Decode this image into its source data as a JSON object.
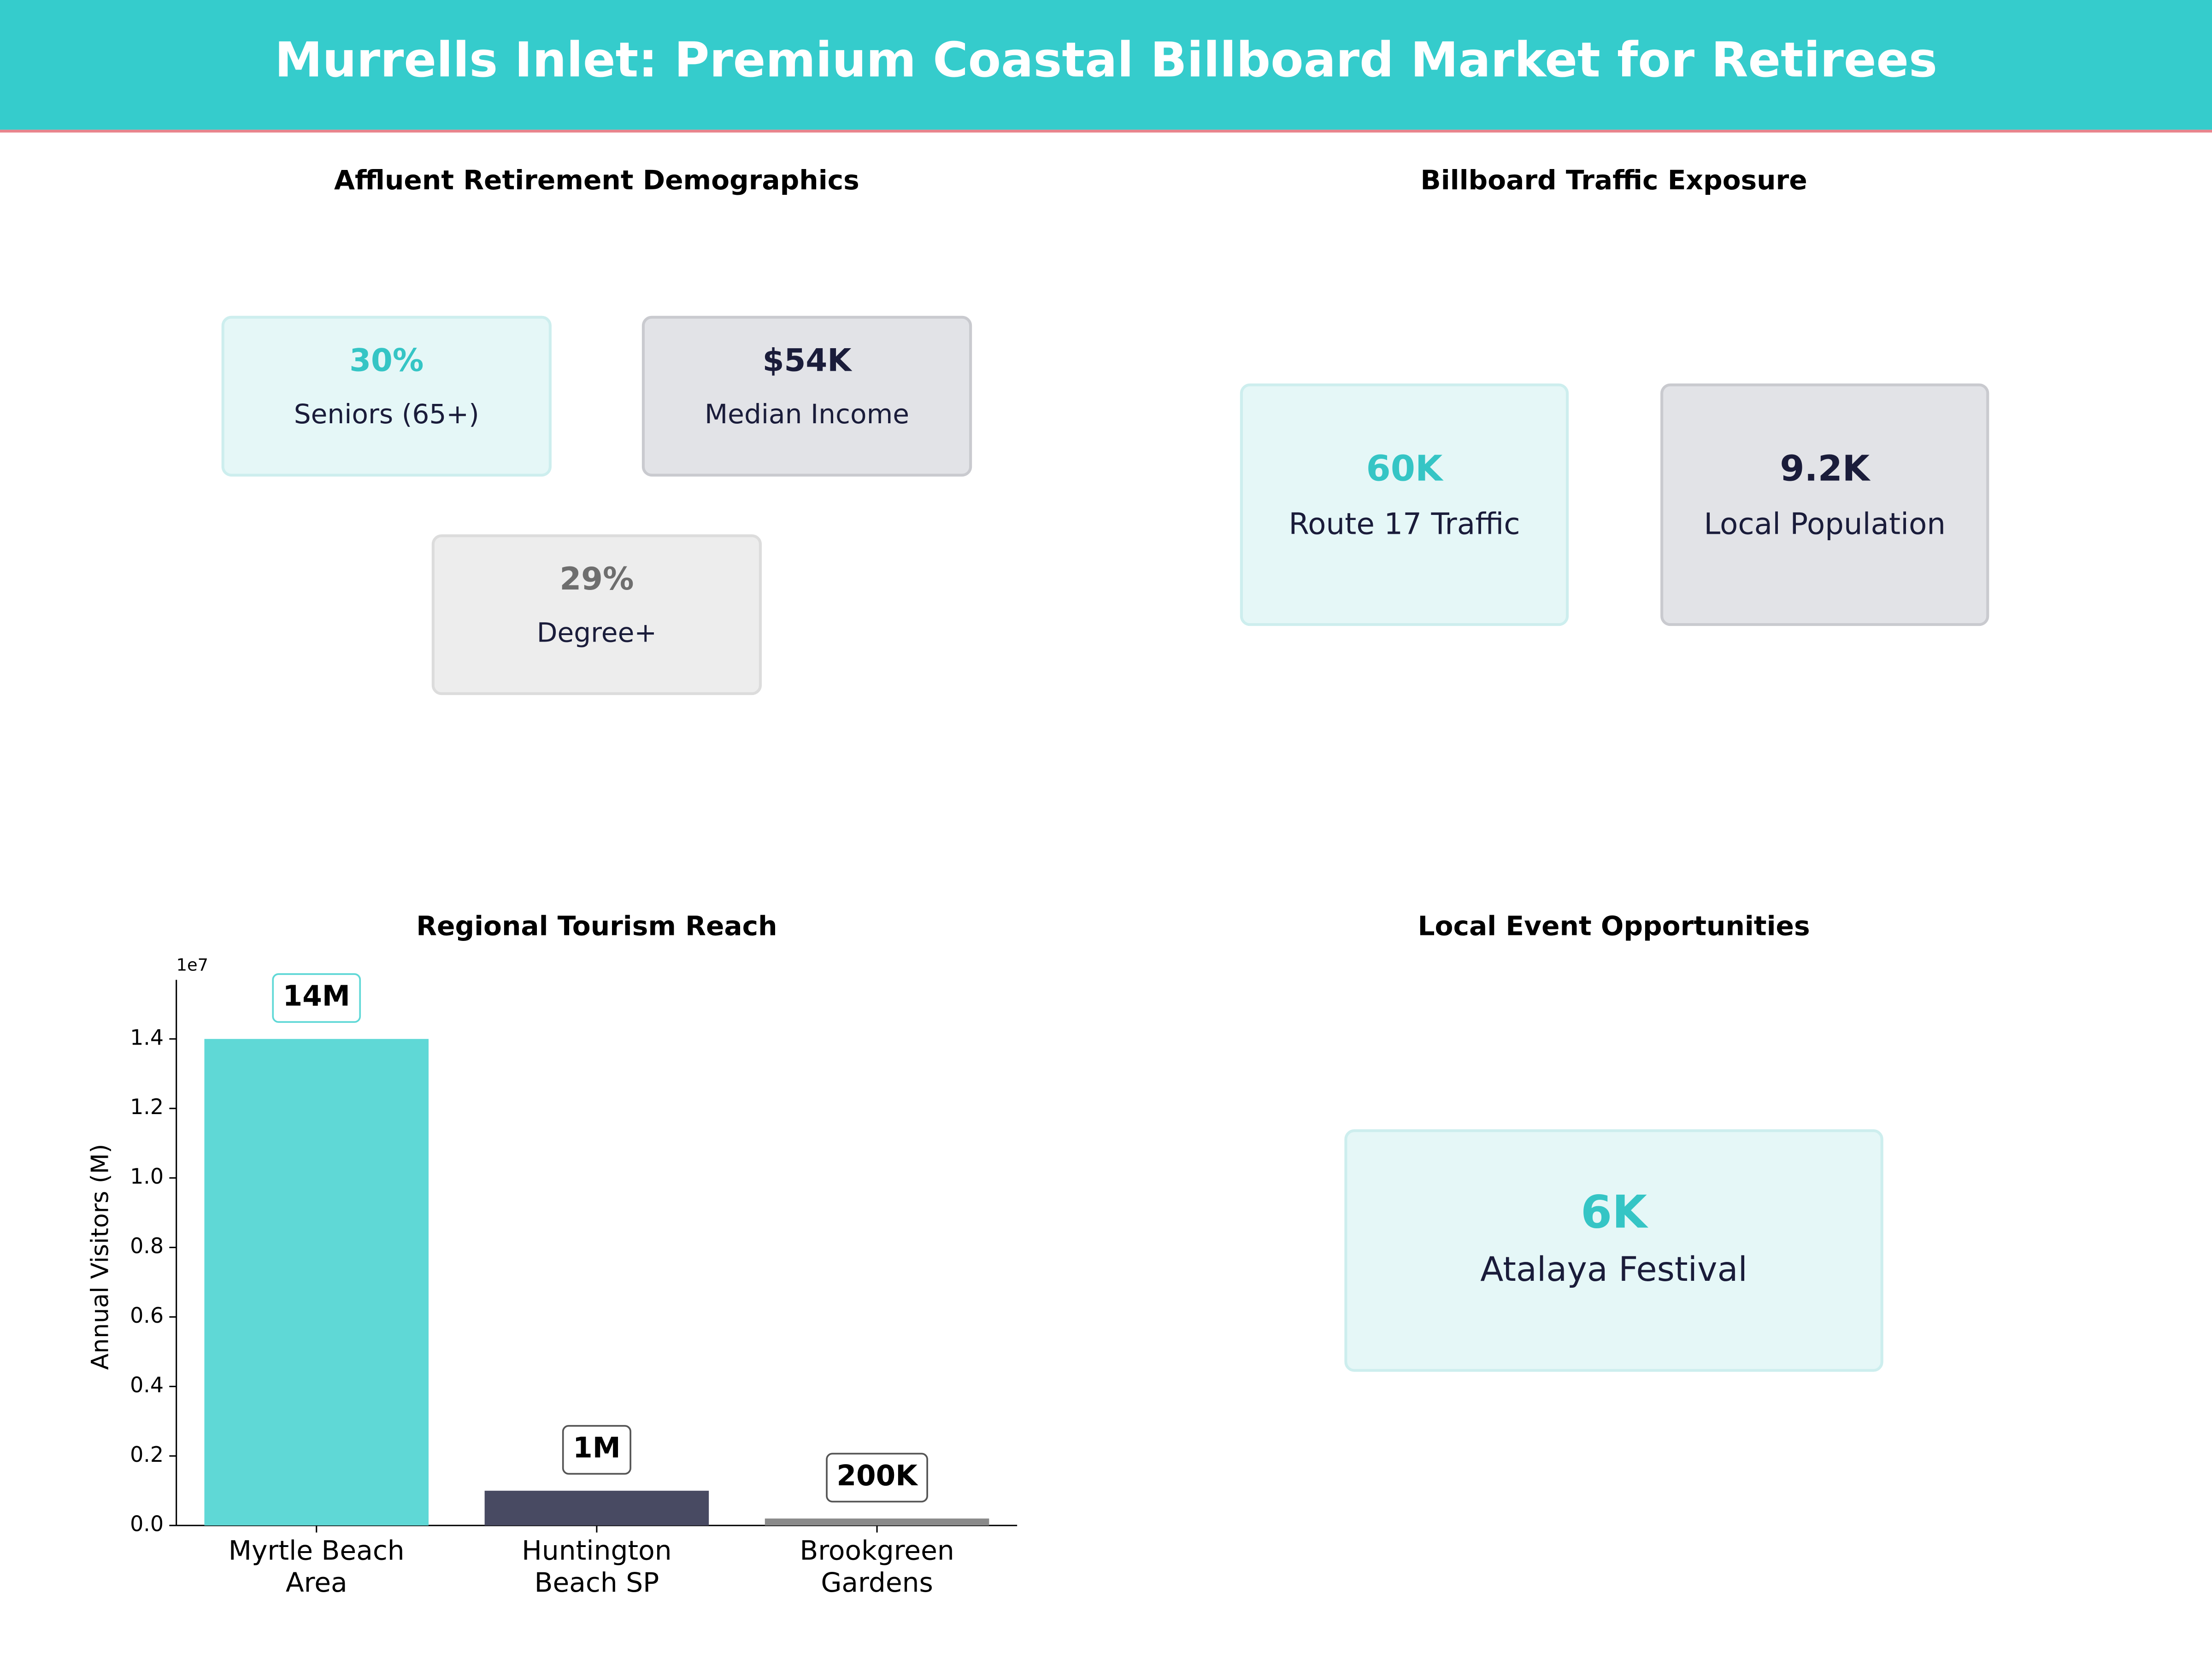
{
  "title": "Murrells Inlet: Premium Coastal Billboard Market for Retirees",
  "panels": [
    {
      "title": "Affluent Retirement Demographics",
      "cards": [
        {
          "value": "30%",
          "label": "Seniors (65+)"
        },
        {
          "value": "$54K",
          "label": "Median Income"
        },
        {
          "value": "29%",
          "label": "Degree+"
        }
      ]
    },
    {
      "title": "Billboard Traffic Exposure",
      "cards": [
        {
          "value": "60K",
          "label": "Route 17 Traffic"
        },
        {
          "value": "9.2K",
          "label": "Local Population"
        }
      ]
    },
    {
      "title": "Local Event Opportunities",
      "cards": [
        {
          "value": "6K",
          "label": "Atalaya Festival"
        }
      ]
    }
  ],
  "chart_data": {
    "type": "bar",
    "title": "Regional Tourism Reach",
    "ylabel": "Annual Visitors (M)",
    "offset_text": "1e7",
    "categories": [
      "Myrtle Beach\nArea",
      "Huntington\nBeach SP",
      "Brookgreen\nGardens"
    ],
    "values": [
      14000000,
      1000000,
      200000
    ],
    "value_labels": [
      "14M",
      "1M",
      "200K"
    ],
    "colors": [
      "#5fd8d6",
      "#484a62",
      "#8a8a8a"
    ],
    "ylim": [
      0,
      15700000
    ],
    "yticks": [
      {
        "value": 0,
        "label": "0.0"
      },
      {
        "value": 2000000,
        "label": "0.2"
      },
      {
        "value": 4000000,
        "label": "0.4"
      },
      {
        "value": 6000000,
        "label": "0.6"
      },
      {
        "value": 8000000,
        "label": "0.8"
      },
      {
        "value": 10000000,
        "label": "1.0"
      },
      {
        "value": 12000000,
        "label": "1.2"
      },
      {
        "value": 14000000,
        "label": "1.4"
      }
    ]
  }
}
